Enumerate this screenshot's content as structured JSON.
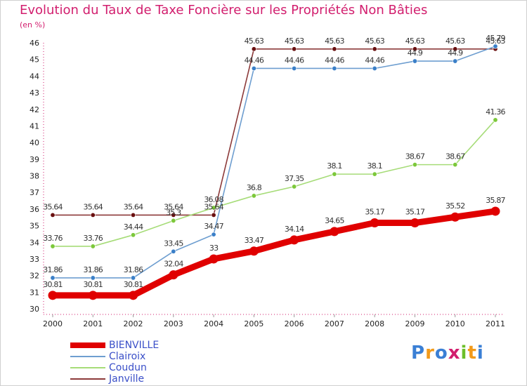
{
  "title": "Evolution du Taux de Taxe Foncière sur les Propriétés Non Bâties",
  "unit_label": "(en %)",
  "logo": {
    "text": "Proxiti",
    "colors": [
      "#3a7fd5",
      "#f29a1a",
      "#3a7fd5",
      "#d21e6e",
      "#6cbf2a",
      "#f29a1a",
      "#3a7fd5"
    ]
  },
  "chart_data": {
    "type": "line",
    "title": "Evolution du Taux de Taxe Foncière sur les Propriétés Non Bâties",
    "ylabel": "(en %)",
    "xlabel": "",
    "x": [
      "2000",
      "2001",
      "2002",
      "2003",
      "2004",
      "2005",
      "2006",
      "2007",
      "2008",
      "2009",
      "2010",
      "2011"
    ],
    "ylim": [
      30,
      46
    ],
    "yticks": [
      "30",
      "31",
      "32",
      "33",
      "34",
      "35",
      "36",
      "37",
      "38",
      "39",
      "40",
      "41",
      "42",
      "43",
      "44",
      "45",
      "46"
    ],
    "grid": false,
    "legend_position": "bottom-left",
    "series": [
      {
        "name": "BIENVILLE",
        "color": "#e00000",
        "marker_color": "#e00000",
        "values": [
          30.81,
          30.81,
          30.81,
          32.04,
          33,
          33.47,
          34.14,
          34.65,
          35.17,
          35.17,
          35.52,
          35.87
        ],
        "labels": [
          "30.81",
          "30.81",
          "30.81",
          "32.04",
          "33",
          "33.47",
          "34.14",
          "34.65",
          "35.17",
          "35.17",
          "35.52",
          "35.87"
        ]
      },
      {
        "name": "Clairoix",
        "color": "#6e9ed0",
        "marker_color": "#3a7fc8",
        "values": [
          31.86,
          31.86,
          31.86,
          33.45,
          34.47,
          44.46,
          44.46,
          44.46,
          44.46,
          44.9,
          44.9,
          45.79
        ],
        "labels": [
          "31.86",
          "31.86",
          "31.86",
          "33.45",
          "34.47",
          "44.46",
          "44.46",
          "44.46",
          "44.46",
          "44.9",
          "44.9",
          "45.79"
        ]
      },
      {
        "name": "Coudun",
        "color": "#a6dc78",
        "marker_color": "#7cc83a",
        "values": [
          33.76,
          33.76,
          34.44,
          35.3,
          36.08,
          36.8,
          37.35,
          38.1,
          38.1,
          38.67,
          38.67,
          41.36
        ],
        "labels": [
          "33.76",
          "33.76",
          "34.44",
          "35.3",
          "36.08",
          "36.8",
          "37.35",
          "38.1",
          "38.1",
          "38.67",
          "38.67",
          "41.36"
        ]
      },
      {
        "name": "Janville",
        "color": "#8c3a3a",
        "marker_color": "#6a1010",
        "values": [
          35.64,
          35.64,
          35.64,
          35.64,
          35.64,
          45.63,
          45.63,
          45.63,
          45.63,
          45.63,
          45.63,
          45.63
        ],
        "labels": [
          "35.64",
          "35.64",
          "35.64",
          "35.64",
          "35.64",
          "45.63",
          "45.63",
          "45.63",
          "45.63",
          "45.63",
          "45.63",
          "45.63"
        ]
      }
    ]
  }
}
